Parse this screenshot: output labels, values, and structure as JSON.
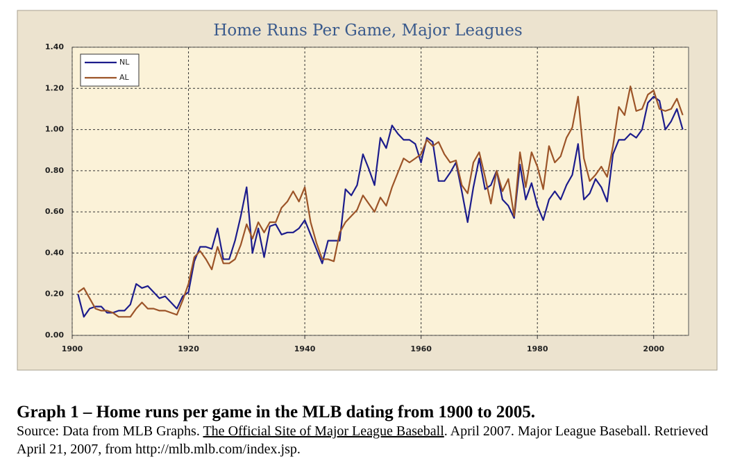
{
  "chart_data": {
    "type": "line",
    "title": "Home Runs Per Game, Major Leagues",
    "x": [
      1901,
      1902,
      1903,
      1904,
      1905,
      1906,
      1907,
      1908,
      1909,
      1910,
      1911,
      1912,
      1913,
      1914,
      1915,
      1916,
      1917,
      1918,
      1919,
      1920,
      1921,
      1922,
      1923,
      1924,
      1925,
      1926,
      1927,
      1928,
      1929,
      1930,
      1931,
      1932,
      1933,
      1934,
      1935,
      1936,
      1937,
      1938,
      1939,
      1940,
      1941,
      1942,
      1943,
      1944,
      1945,
      1946,
      1947,
      1948,
      1949,
      1950,
      1951,
      1952,
      1953,
      1954,
      1955,
      1956,
      1957,
      1958,
      1959,
      1960,
      1961,
      1962,
      1963,
      1964,
      1965,
      1966,
      1967,
      1968,
      1969,
      1970,
      1971,
      1972,
      1973,
      1974,
      1975,
      1976,
      1977,
      1978,
      1979,
      1980,
      1981,
      1982,
      1983,
      1984,
      1985,
      1986,
      1987,
      1988,
      1989,
      1990,
      1991,
      1992,
      1993,
      1994,
      1995,
      1996,
      1997,
      1998,
      1999,
      2000,
      2001,
      2002,
      2003,
      2004,
      2005
    ],
    "series": [
      {
        "name": "NL",
        "color": "#1c1c8c",
        "values": [
          0.2,
          0.09,
          0.13,
          0.14,
          0.14,
          0.11,
          0.11,
          0.12,
          0.12,
          0.15,
          0.25,
          0.23,
          0.24,
          0.21,
          0.18,
          0.19,
          0.16,
          0.13,
          0.19,
          0.21,
          0.36,
          0.43,
          0.43,
          0.42,
          0.52,
          0.37,
          0.37,
          0.46,
          0.58,
          0.72,
          0.4,
          0.52,
          0.38,
          0.53,
          0.54,
          0.49,
          0.5,
          0.5,
          0.52,
          0.56,
          0.49,
          0.42,
          0.35,
          0.46,
          0.46,
          0.46,
          0.71,
          0.68,
          0.73,
          0.88,
          0.81,
          0.73,
          0.96,
          0.91,
          1.02,
          0.98,
          0.95,
          0.95,
          0.93,
          0.84,
          0.96,
          0.94,
          0.75,
          0.75,
          0.79,
          0.84,
          0.7,
          0.55,
          0.72,
          0.86,
          0.71,
          0.73,
          0.8,
          0.66,
          0.63,
          0.57,
          0.83,
          0.66,
          0.74,
          0.63,
          0.56,
          0.66,
          0.7,
          0.66,
          0.73,
          0.78,
          0.93,
          0.66,
          0.69,
          0.76,
          0.72,
          0.65,
          0.88,
          0.95,
          0.95,
          0.98,
          0.96,
          1.0,
          1.13,
          1.16,
          1.14,
          1.0,
          1.04,
          1.1,
          1.0
        ]
      },
      {
        "name": "AL",
        "color": "#9c5428",
        "values": [
          0.21,
          0.23,
          0.18,
          0.13,
          0.12,
          0.12,
          0.11,
          0.09,
          0.09,
          0.09,
          0.13,
          0.16,
          0.13,
          0.13,
          0.12,
          0.12,
          0.11,
          0.1,
          0.17,
          0.25,
          0.38,
          0.41,
          0.37,
          0.32,
          0.43,
          0.35,
          0.35,
          0.37,
          0.44,
          0.54,
          0.47,
          0.55,
          0.5,
          0.55,
          0.55,
          0.62,
          0.65,
          0.7,
          0.65,
          0.72,
          0.55,
          0.45,
          0.37,
          0.37,
          0.36,
          0.5,
          0.55,
          0.58,
          0.61,
          0.68,
          0.64,
          0.6,
          0.67,
          0.63,
          0.72,
          0.79,
          0.86,
          0.84,
          0.86,
          0.88,
          0.95,
          0.92,
          0.94,
          0.88,
          0.84,
          0.85,
          0.73,
          0.69,
          0.84,
          0.89,
          0.77,
          0.64,
          0.8,
          0.7,
          0.76,
          0.58,
          0.89,
          0.72,
          0.89,
          0.82,
          0.71,
          0.92,
          0.84,
          0.87,
          0.96,
          1.01,
          1.16,
          0.86,
          0.75,
          0.78,
          0.82,
          0.77,
          0.92,
          1.11,
          1.07,
          1.21,
          1.09,
          1.1,
          1.17,
          1.19,
          1.1,
          1.09,
          1.1,
          1.15,
          1.07
        ]
      }
    ],
    "xlim": [
      1900,
      2006
    ],
    "xticks": [
      1900,
      1920,
      1940,
      1960,
      1980,
      2000
    ],
    "ylim": [
      0,
      1.4
    ],
    "yticks": [
      {
        "value": 0,
        "label": "0.00"
      },
      {
        "value": 0.2,
        "label": "0.20"
      },
      {
        "value": 0.4,
        "label": "0.40"
      },
      {
        "value": 0.6,
        "label": "0.60"
      },
      {
        "value": 0.8,
        "label": "0.80"
      },
      {
        "value": 1,
        "label": "1.00"
      },
      {
        "value": 1.2,
        "label": "1.20"
      },
      {
        "value": 1.4,
        "label": "1.40"
      }
    ],
    "grid": true,
    "legend": "upper left"
  },
  "caption": {
    "title": "Graph 1 – Home runs per game in the MLB dating from 1900 to 2005.",
    "source_start": "Source: Data from MLB Graphs.",
    "source_link": "The Official Site of Major League Baseball",
    "source_end": ". April 2007. Major League Baseball. Retrieved April 21, 2007, from http://mlb.mlb.com/index.jsp."
  }
}
